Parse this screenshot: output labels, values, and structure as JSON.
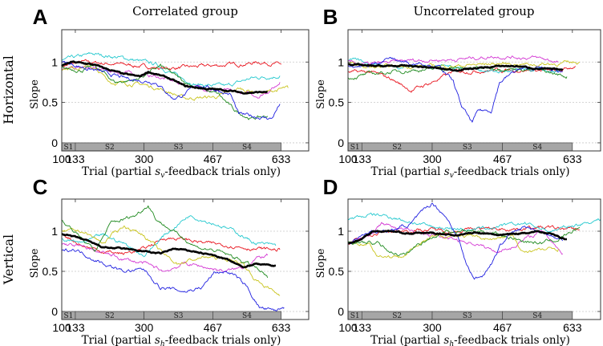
{
  "figure": {
    "column_titles": [
      "Correlated group",
      "Uncorrelated group"
    ],
    "row_labels": [
      "Horizontal",
      "Vertical"
    ]
  },
  "colors": {
    "red": "#e8141e",
    "cyan": "#27c9cf",
    "magenta": "#d43bd4",
    "yellow": "#c9c41e",
    "green": "#1f8a1f",
    "blue": "#1f1fe0",
    "mean": "#000000",
    "segment_bar": "#a6a6a6",
    "grid": "#c8c8c8"
  },
  "chart_data": [
    {
      "panel": "A",
      "type": "line",
      "title": "Correlated group",
      "row": "Horizontal",
      "ylabel": "Slope",
      "xlabel": {
        "prefix": "Trial (partial ",
        "symbol": "s",
        "subscript": "v",
        "suffix": "-feedback trials only)"
      },
      "xlim": [
        100,
        700
      ],
      "ylim": [
        -0.1,
        1.4
      ],
      "xticks": [
        100,
        133,
        300,
        467,
        633
      ],
      "yticks": [
        0,
        0.5,
        1
      ],
      "grid": "dashed-horizontal",
      "segments": [
        {
          "label": "S1",
          "from": 100,
          "to": 133
        },
        {
          "label": "S2",
          "from": 133,
          "to": 300
        },
        {
          "label": "S3",
          "from": 300,
          "to": 467
        },
        {
          "label": "S4",
          "from": 467,
          "to": 633
        }
      ],
      "series": [
        {
          "name": "red",
          "x": [
            100,
            150,
            250,
            350,
            450,
            550,
            580,
            633
          ],
          "y": [
            0.95,
            1.0,
            0.97,
            0.92,
            0.95,
            0.98,
            1.0,
            0.97
          ]
        },
        {
          "name": "cyan",
          "x": [
            100,
            175,
            250,
            330,
            390,
            430,
            500,
            560,
            630
          ],
          "y": [
            1.02,
            1.1,
            1.05,
            0.97,
            0.8,
            0.72,
            0.7,
            0.8,
            0.83
          ]
        },
        {
          "name": "magenta",
          "x": [
            100,
            150,
            250,
            330,
            400,
            450,
            530,
            580,
            620,
            630
          ],
          "y": [
            0.9,
            0.93,
            0.87,
            0.82,
            0.72,
            0.67,
            0.62,
            0.58,
            0.7,
            0.75
          ]
        },
        {
          "name": "yellow",
          "x": [
            100,
            170,
            220,
            300,
            350,
            400,
            480,
            530,
            590,
            650
          ],
          "y": [
            0.92,
            0.95,
            0.75,
            0.72,
            0.65,
            0.55,
            0.57,
            0.67,
            0.62,
            0.68
          ]
        },
        {
          "name": "green",
          "x": [
            100,
            150,
            180,
            230,
            280,
            340,
            400,
            450,
            480,
            520,
            560,
            600
          ],
          "y": [
            0.92,
            0.9,
            0.95,
            0.75,
            0.78,
            0.95,
            0.75,
            0.65,
            0.6,
            0.4,
            0.3,
            0.33
          ]
        },
        {
          "name": "blue",
          "x": [
            100,
            180,
            250,
            330,
            370,
            400,
            430,
            480,
            510,
            530,
            580,
            610,
            630
          ],
          "y": [
            1.0,
            0.9,
            0.8,
            0.75,
            0.55,
            0.6,
            0.72,
            0.65,
            0.6,
            0.35,
            0.32,
            0.3,
            0.48
          ]
        },
        {
          "name": "mean",
          "x": [
            100,
            125,
            175,
            200,
            250,
            290,
            310,
            360,
            400,
            450,
            500,
            540,
            600
          ],
          "y": [
            0.95,
            1.0,
            0.97,
            0.93,
            0.85,
            0.82,
            0.88,
            0.8,
            0.7,
            0.67,
            0.65,
            0.62,
            0.63
          ]
        }
      ]
    },
    {
      "panel": "B",
      "type": "line",
      "title": "Uncorrelated group",
      "row": "Horizontal",
      "ylabel": "Slope",
      "xlabel": {
        "prefix": "Trial (partial ",
        "symbol": "s",
        "subscript": "v",
        "suffix": "-feedback trials only)"
      },
      "xlim": [
        100,
        700
      ],
      "ylim": [
        -0.1,
        1.4
      ],
      "xticks": [
        100,
        133,
        300,
        467,
        633
      ],
      "yticks": [
        0,
        0.5,
        1
      ],
      "grid": "dashed-horizontal",
      "segments": [
        {
          "label": "S1",
          "from": 100,
          "to": 133
        },
        {
          "label": "S2",
          "from": 133,
          "to": 300
        },
        {
          "label": "S3",
          "from": 300,
          "to": 467
        },
        {
          "label": "S4",
          "from": 467,
          "to": 633
        }
      ],
      "series": [
        {
          "name": "red",
          "x": [
            100,
            150,
            200,
            250,
            300,
            350,
            450,
            550,
            600,
            640
          ],
          "y": [
            0.87,
            0.88,
            0.8,
            0.65,
            0.75,
            0.88,
            0.9,
            0.9,
            0.88,
            0.95
          ]
        },
        {
          "name": "cyan",
          "x": [
            100,
            200,
            330,
            400,
            450,
            550,
            600
          ],
          "y": [
            1.03,
            0.95,
            0.95,
            0.92,
            0.88,
            0.9,
            0.87
          ]
        },
        {
          "name": "magenta",
          "x": [
            100,
            150,
            250,
            350,
            450,
            550,
            600
          ],
          "y": [
            1.0,
            0.97,
            1.02,
            1.03,
            1.07,
            1.05,
            1.0
          ]
        },
        {
          "name": "yellow",
          "x": [
            100,
            150,
            250,
            350,
            450,
            550,
            600,
            650
          ],
          "y": [
            0.98,
            0.93,
            0.95,
            0.95,
            0.98,
            0.97,
            0.98,
            1.0
          ]
        },
        {
          "name": "green",
          "x": [
            100,
            150,
            250,
            350,
            450,
            550,
            620
          ],
          "y": [
            0.8,
            0.85,
            0.9,
            0.92,
            0.93,
            0.9,
            0.82
          ]
        },
        {
          "name": "blue",
          "x": [
            100,
            150,
            195,
            250,
            270,
            320,
            350,
            370,
            395,
            410,
            440,
            460,
            500,
            550,
            610
          ],
          "y": [
            0.95,
            0.95,
            1.05,
            0.98,
            1.0,
            0.93,
            0.75,
            0.45,
            0.25,
            0.4,
            0.4,
            0.75,
            0.9,
            0.93,
            0.88
          ]
        },
        {
          "name": "mean",
          "x": [
            100,
            150,
            250,
            300,
            350,
            467,
            500,
            550,
            610
          ],
          "y": [
            0.98,
            0.95,
            0.95,
            0.93,
            0.9,
            0.95,
            0.95,
            0.92,
            0.9
          ]
        }
      ]
    },
    {
      "panel": "C",
      "type": "line",
      "title": "",
      "row": "Vertical",
      "ylabel": "Slope",
      "xlabel": {
        "prefix": "Trial (partial ",
        "symbol": "s",
        "subscript": "h",
        "suffix": "-feedback trials only)"
      },
      "xlim": [
        100,
        700
      ],
      "ylim": [
        -0.1,
        1.4
      ],
      "xticks": [
        100,
        133,
        300,
        467,
        633
      ],
      "yticks": [
        0,
        0.5,
        1
      ],
      "grid": "dashed-horizontal",
      "segments": [
        {
          "label": "S1",
          "from": 100,
          "to": 133
        },
        {
          "label": "S2",
          "from": 133,
          "to": 300
        },
        {
          "label": "S3",
          "from": 300,
          "to": 467
        },
        {
          "label": "S4",
          "from": 467,
          "to": 633
        }
      ],
      "series": [
        {
          "name": "red",
          "x": [
            100,
            150,
            200,
            250,
            300,
            350,
            400,
            450,
            500,
            570,
            630
          ],
          "y": [
            0.98,
            0.82,
            0.75,
            0.72,
            0.78,
            0.92,
            0.9,
            0.85,
            0.83,
            0.78,
            0.77
          ]
        },
        {
          "name": "cyan",
          "x": [
            100,
            150,
            200,
            250,
            300,
            350,
            410,
            470,
            520,
            570,
            620
          ],
          "y": [
            0.9,
            0.85,
            0.95,
            0.85,
            0.7,
            0.95,
            1.2,
            1.1,
            1.0,
            0.85,
            0.82
          ]
        },
        {
          "name": "magenta",
          "x": [
            100,
            150,
            200,
            250,
            300,
            350,
            400,
            450,
            500,
            540,
            570,
            600
          ],
          "y": [
            0.85,
            0.8,
            0.73,
            0.65,
            0.6,
            0.5,
            0.6,
            0.55,
            0.5,
            0.55,
            0.65,
            0.7
          ]
        },
        {
          "name": "yellow",
          "x": [
            100,
            150,
            200,
            250,
            300,
            350,
            380,
            450,
            500,
            540,
            570,
            630
          ],
          "y": [
            1.0,
            1.0,
            0.85,
            1.07,
            0.95,
            0.7,
            0.6,
            0.68,
            0.65,
            0.6,
            0.4,
            0.2
          ]
        },
        {
          "name": "green",
          "x": [
            100,
            150,
            180,
            220,
            280,
            310,
            330,
            370,
            430,
            480,
            530,
            570,
            600
          ],
          "y": [
            1.15,
            0.9,
            0.75,
            1.1,
            1.2,
            1.33,
            1.15,
            1.0,
            0.8,
            0.75,
            0.65,
            0.55,
            0.42
          ]
        },
        {
          "name": "blue",
          "x": [
            100,
            130,
            200,
            250,
            300,
            340,
            400,
            440,
            470,
            500,
            520,
            550,
            580,
            615,
            640
          ],
          "y": [
            0.75,
            0.78,
            0.6,
            0.5,
            0.52,
            0.3,
            0.25,
            0.3,
            0.48,
            0.5,
            0.45,
            0.3,
            0.05,
            0.0,
            0.05
          ]
        },
        {
          "name": "mean",
          "x": [
            100,
            150,
            200,
            250,
            300,
            340,
            370,
            420,
            467,
            500,
            540,
            570,
            620
          ],
          "y": [
            0.97,
            0.9,
            0.8,
            0.78,
            0.75,
            0.72,
            0.78,
            0.75,
            0.7,
            0.65,
            0.55,
            0.6,
            0.57
          ]
        }
      ]
    },
    {
      "panel": "D",
      "type": "line",
      "title": "",
      "row": "Vertical",
      "ylabel": "Slope",
      "xlabel": {
        "prefix": "Trial (partial ",
        "symbol": "s",
        "subscript": "h",
        "suffix": "-feedback trials only)"
      },
      "xlim": [
        100,
        700
      ],
      "ylim": [
        -0.1,
        1.4
      ],
      "xticks": [
        100,
        133,
        300,
        467,
        633
      ],
      "yticks": [
        0,
        0.5,
        1
      ],
      "grid": "dashed-horizontal",
      "segments": [
        {
          "label": "S1",
          "from": 100,
          "to": 133
        },
        {
          "label": "S2",
          "from": 133,
          "to": 300
        },
        {
          "label": "S3",
          "from": 300,
          "to": 467
        },
        {
          "label": "S4",
          "from": 467,
          "to": 633
        }
      ],
      "series": [
        {
          "name": "red",
          "x": [
            100,
            150,
            200,
            300,
            350,
            400,
            500,
            550,
            650
          ],
          "y": [
            0.85,
            0.95,
            1.0,
            1.02,
            1.0,
            1.03,
            1.03,
            1.05,
            1.02
          ]
        },
        {
          "name": "cyan",
          "x": [
            100,
            150,
            175,
            200,
            300,
            400,
            450,
            520,
            580,
            620,
            700
          ],
          "y": [
            1.15,
            1.2,
            1.2,
            1.18,
            1.05,
            1.02,
            1.05,
            1.1,
            1.0,
            1.05,
            1.15
          ]
        },
        {
          "name": "magenta",
          "x": [
            100,
            150,
            180,
            250,
            300,
            350,
            400,
            450,
            490,
            520,
            560,
            590,
            610
          ],
          "y": [
            0.85,
            0.95,
            1.1,
            1.0,
            0.95,
            0.9,
            0.85,
            0.75,
            0.8,
            0.9,
            1.0,
            0.85,
            0.72
          ]
        },
        {
          "name": "yellow",
          "x": [
            100,
            150,
            170,
            220,
            260,
            300,
            350,
            450,
            490,
            510,
            600
          ],
          "y": [
            0.85,
            0.85,
            0.7,
            0.68,
            0.8,
            0.92,
            0.95,
            0.9,
            0.95,
            0.75,
            0.78
          ]
        },
        {
          "name": "green",
          "x": [
            100,
            170,
            200,
            235,
            270,
            330,
            400,
            450,
            500,
            550,
            600,
            650
          ],
          "y": [
            0.85,
            0.85,
            0.75,
            0.7,
            0.85,
            1.0,
            1.0,
            0.98,
            0.9,
            0.85,
            0.9,
            1.05
          ]
        },
        {
          "name": "blue",
          "x": [
            100,
            150,
            200,
            250,
            300,
            330,
            360,
            380,
            400,
            420,
            440,
            460,
            480,
            520,
            560,
            600,
            610
          ],
          "y": [
            0.85,
            1.0,
            1.0,
            1.1,
            1.35,
            1.2,
            0.95,
            0.6,
            0.4,
            0.45,
            0.6,
            0.8,
            0.95,
            1.05,
            1.0,
            0.9,
            0.88
          ]
        },
        {
          "name": "mean",
          "x": [
            100,
            130,
            160,
            200,
            250,
            300,
            350,
            400,
            467,
            500,
            550,
            590,
            620
          ],
          "y": [
            0.85,
            0.9,
            1.0,
            1.0,
            0.97,
            0.98,
            0.95,
            0.98,
            0.95,
            0.97,
            1.0,
            0.95,
            0.9
          ]
        }
      ]
    }
  ]
}
